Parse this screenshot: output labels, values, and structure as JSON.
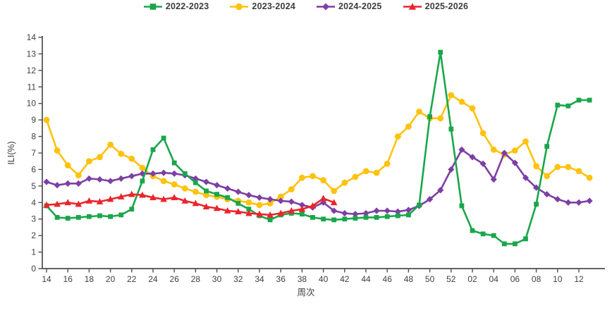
{
  "chart_data": {
    "type": "line",
    "title": "",
    "xlabel": "周次",
    "ylabel": "ILI(%)",
    "ylim": [
      0,
      14
    ],
    "ytick_interval": 1,
    "xtick_every": 2,
    "grid": false,
    "legend_position": "top-center",
    "axis_color": "#4d4d4d",
    "tick_label_color": "#3f3f3f",
    "categories": [
      "14",
      "15",
      "16",
      "17",
      "18",
      "19",
      "20",
      "21",
      "22",
      "23",
      "24",
      "25",
      "26",
      "27",
      "28",
      "29",
      "30",
      "31",
      "32",
      "33",
      "34",
      "35",
      "36",
      "37",
      "38",
      "39",
      "40",
      "41",
      "42",
      "43",
      "44",
      "45",
      "46",
      "47",
      "48",
      "49",
      "50",
      "51",
      "52",
      "01",
      "02",
      "03",
      "04",
      "05",
      "06",
      "07",
      "08",
      "09",
      "10",
      "11",
      "12",
      "13"
    ],
    "series": [
      {
        "name": "2022-2023",
        "color": "#1aa64b",
        "marker": "square",
        "values": [
          3.8,
          3.1,
          3.05,
          3.1,
          3.15,
          3.2,
          3.15,
          3.25,
          3.6,
          5.3,
          7.2,
          7.9,
          6.4,
          5.75,
          5.2,
          4.7,
          4.5,
          4.3,
          3.95,
          3.6,
          3.2,
          2.95,
          3.25,
          3.35,
          3.3,
          3.1,
          3.0,
          2.95,
          3.0,
          3.05,
          3.1,
          3.1,
          3.15,
          3.2,
          3.25,
          3.85,
          9.2,
          13.1,
          8.45,
          3.8,
          2.3,
          2.1,
          2.0,
          1.5,
          1.5,
          1.8,
          3.9,
          7.4,
          9.9,
          9.85,
          10.2,
          10.2
        ]
      },
      {
        "name": "2023-2024",
        "color": "#ffc20e",
        "marker": "circle",
        "values": [
          9.0,
          7.15,
          6.25,
          5.65,
          6.5,
          6.75,
          7.5,
          6.95,
          6.65,
          6.1,
          5.6,
          5.3,
          5.1,
          4.85,
          4.65,
          4.45,
          4.35,
          4.2,
          4.1,
          4.0,
          3.85,
          3.95,
          4.35,
          4.8,
          5.5,
          5.6,
          5.35,
          4.7,
          5.2,
          5.55,
          5.9,
          5.8,
          6.35,
          8.0,
          8.6,
          9.5,
          9.1,
          9.1,
          10.5,
          10.1,
          9.7,
          8.2,
          7.2,
          6.9,
          7.15,
          7.7,
          6.2,
          5.6,
          6.15,
          6.15,
          5.9,
          5.5
        ]
      },
      {
        "name": "2024-2025",
        "color": "#7d3fa4",
        "marker": "diamond",
        "values": [
          5.25,
          5.05,
          5.15,
          5.15,
          5.45,
          5.4,
          5.3,
          5.45,
          5.6,
          5.75,
          5.75,
          5.8,
          5.75,
          5.65,
          5.45,
          5.25,
          5.05,
          4.85,
          4.65,
          4.45,
          4.3,
          4.2,
          4.1,
          4.05,
          3.85,
          3.7,
          4.0,
          3.5,
          3.35,
          3.3,
          3.35,
          3.5,
          3.5,
          3.45,
          3.55,
          3.8,
          4.2,
          4.75,
          6.0,
          7.2,
          6.75,
          6.35,
          5.4,
          7.0,
          6.4,
          5.5,
          4.9,
          4.5,
          4.2,
          4.0,
          4.0,
          4.1
        ]
      },
      {
        "name": "2025-2026",
        "color": "#e9252b",
        "marker": "triangle",
        "values": [
          3.85,
          3.9,
          4.0,
          3.9,
          4.1,
          4.05,
          4.2,
          4.35,
          4.5,
          4.45,
          4.3,
          4.2,
          4.3,
          4.1,
          3.95,
          3.75,
          3.65,
          3.5,
          3.45,
          3.35,
          3.3,
          3.25,
          3.35,
          3.5,
          3.6,
          3.8,
          4.25,
          4.0,
          null,
          null,
          null,
          null,
          null,
          null,
          null,
          null,
          null,
          null,
          null,
          null,
          null,
          null,
          null,
          null,
          null,
          null,
          null,
          null,
          null,
          null,
          null,
          null
        ]
      }
    ]
  }
}
